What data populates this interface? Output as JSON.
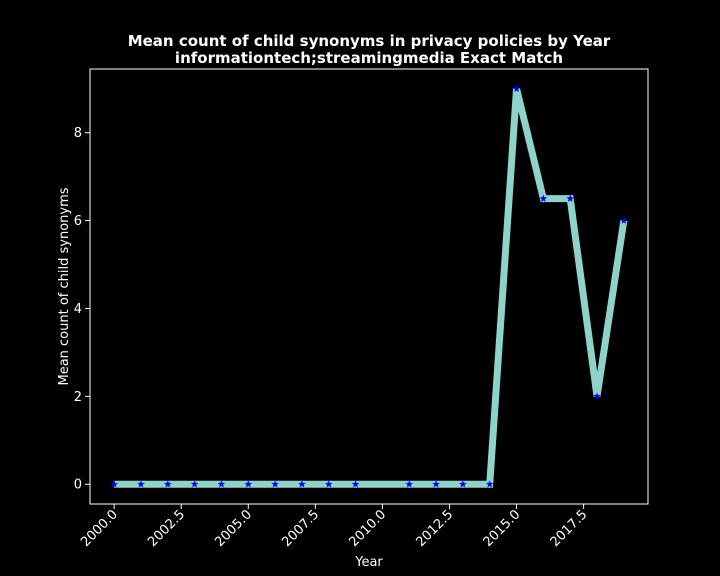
{
  "chart_data": {
    "type": "line",
    "title": "Mean count of child synonyms in privacy policies by Year",
    "subtitle": "informationtech;streamingmedia Exact Match",
    "xlabel": "Year",
    "ylabel": "Mean count of child synonyms",
    "xlim": [
      1999.1,
      2019.9
    ],
    "ylim": [
      -0.45,
      9.45
    ],
    "x_ticks": [
      2000,
      2002.5,
      2005,
      2007.5,
      2010,
      2012.5,
      2015,
      2017.5
    ],
    "x_tick_labels": [
      "2000.0",
      "2002.5",
      "2005.0",
      "2007.5",
      "2010.0",
      "2012.5",
      "2015.0",
      "2017.5"
    ],
    "y_ticks": [
      0,
      2,
      4,
      6,
      8
    ],
    "y_tick_labels": [
      "0",
      "2",
      "4",
      "6",
      "8"
    ],
    "grid": false,
    "series": [
      {
        "line_color": "#8dd3c7",
        "marker_color": "#0000ff",
        "marker": "star",
        "x": [
          2000,
          2001,
          2002,
          2003,
          2004,
          2005,
          2006,
          2007,
          2008,
          2009,
          2011,
          2012,
          2013,
          2014,
          2015,
          2016,
          2017,
          2018,
          2019
        ],
        "y": [
          0,
          0,
          0,
          0,
          0,
          0,
          0,
          0,
          0,
          0,
          0,
          0,
          0,
          0,
          9,
          6.5,
          6.5,
          2,
          6
        ]
      }
    ]
  }
}
